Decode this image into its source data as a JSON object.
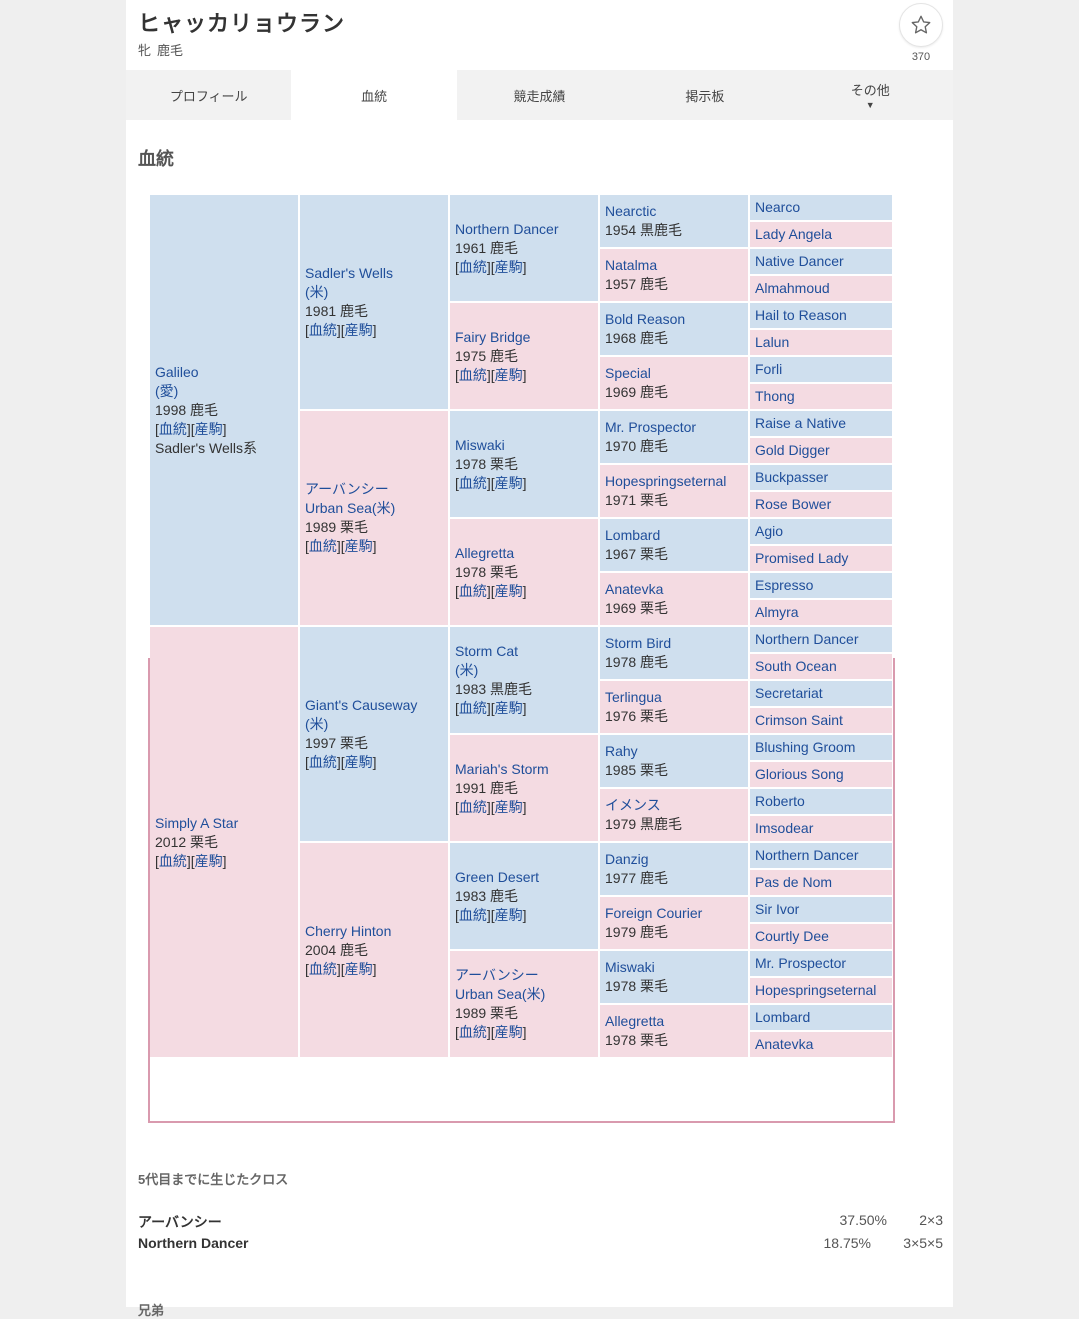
{
  "horse": {
    "name": "ヒャッカリョウラン",
    "sex": "牝",
    "color": "鹿毛",
    "favorite_count": "370",
    "favorite_icon": "star-outline-icon"
  },
  "tabs": [
    {
      "label": "プロフィール",
      "active": false
    },
    {
      "label": "血統",
      "active": true
    },
    {
      "label": "競走成績",
      "active": false
    },
    {
      "label": "掲示板",
      "active": false
    },
    {
      "label": "その他",
      "active": false,
      "caret": "▼"
    }
  ],
  "section_title": "血統",
  "links": {
    "pedigree": "血統",
    "offspring": "産駒"
  },
  "pedigree": {
    "g1": [
      {
        "name": "Galileo",
        "origin": "(愛)",
        "year_color": "1998 鹿毛",
        "links": true,
        "line": "Sadler's Wells系",
        "sex": "m"
      },
      {
        "name": "Simply A Star",
        "year_color": "2012 栗毛",
        "links": true,
        "sex": "f"
      }
    ],
    "g2": [
      {
        "name": "Sadler's Wells",
        "origin": "(米)",
        "year_color": "1981 鹿毛",
        "links": true,
        "sex": "m"
      },
      {
        "name_jp": "アーバンシー",
        "name": "Urban Sea(米)",
        "year_color": "1989 栗毛",
        "links": true,
        "sex": "f"
      },
      {
        "name": "Giant's Causeway",
        "origin": "(米)",
        "year_color": "1997 栗毛",
        "links": true,
        "sex": "m"
      },
      {
        "name": "Cherry Hinton",
        "year_color": "2004 鹿毛",
        "links": true,
        "sex": "f"
      }
    ],
    "g3": [
      {
        "name": "Northern Dancer",
        "year_color": "1961 鹿毛",
        "links": true,
        "sex": "m"
      },
      {
        "name": "Fairy Bridge",
        "year_color": "1975 鹿毛",
        "links": true,
        "sex": "f"
      },
      {
        "name": "Miswaki",
        "year_color": "1978 栗毛",
        "links": true,
        "sex": "m"
      },
      {
        "name": "Allegretta",
        "year_color": "1978 栗毛",
        "links": true,
        "sex": "f"
      },
      {
        "name": "Storm Cat",
        "origin": "(米)",
        "year_color": "1983 黒鹿毛",
        "links": true,
        "sex": "m"
      },
      {
        "name": "Mariah's Storm",
        "year_color": "1991 鹿毛",
        "links": true,
        "sex": "f"
      },
      {
        "name": "Green Desert",
        "year_color": "1983 鹿毛",
        "links": true,
        "sex": "m"
      },
      {
        "name_jp": "アーバンシー",
        "name": "Urban Sea(米)",
        "year_color": "1989 栗毛",
        "links": true,
        "sex": "f"
      }
    ],
    "g4": [
      {
        "name": "Nearctic",
        "year_color": "1954 黒鹿毛",
        "sex": "m"
      },
      {
        "name": "Natalma",
        "year_color": "1957 鹿毛",
        "sex": "f"
      },
      {
        "name": "Bold Reason",
        "year_color": "1968 鹿毛",
        "sex": "m"
      },
      {
        "name": "Special",
        "year_color": "1969 鹿毛",
        "sex": "f"
      },
      {
        "name": "Mr. Prospector",
        "year_color": "1970 鹿毛",
        "sex": "m"
      },
      {
        "name": "Hopespringseternal",
        "year_color": "1971 栗毛",
        "sex": "f"
      },
      {
        "name": "Lombard",
        "year_color": "1967 栗毛",
        "sex": "m"
      },
      {
        "name": "Anatevka",
        "year_color": "1969 栗毛",
        "sex": "f"
      },
      {
        "name": "Storm Bird",
        "year_color": "1978 鹿毛",
        "sex": "m"
      },
      {
        "name": "Terlingua",
        "year_color": "1976 栗毛",
        "sex": "f"
      },
      {
        "name": "Rahy",
        "year_color": "1985 栗毛",
        "sex": "m"
      },
      {
        "name": "イメンス",
        "year_color": "1979 黒鹿毛",
        "sex": "f"
      },
      {
        "name": "Danzig",
        "year_color": "1977 鹿毛",
        "sex": "m"
      },
      {
        "name": "Foreign Courier",
        "year_color": "1979 鹿毛",
        "sex": "f"
      },
      {
        "name": "Miswaki",
        "year_color": "1978 栗毛",
        "sex": "m"
      },
      {
        "name": "Allegretta",
        "year_color": "1978 栗毛",
        "sex": "f"
      }
    ],
    "g5": [
      "Nearco",
      "Lady Angela",
      "Native Dancer",
      "Almahmoud",
      "Hail to Reason",
      "Lalun",
      "Forli",
      "Thong",
      "Raise a Native",
      "Gold Digger",
      "Buckpasser",
      "Rose Bower",
      "Agio",
      "Promised Lady",
      "Espresso",
      "Almyra",
      "Northern Dancer",
      "South Ocean",
      "Secretariat",
      "Crimson Saint",
      "Blushing Groom",
      "Glorious Song",
      "Roberto",
      "Imsodear",
      "Northern Dancer",
      "Pas de Nom",
      "Sir Ivor",
      "Courtly Dee",
      "Mr. Prospector",
      "Hopespringseternal",
      "Lombard",
      "Anatevka"
    ]
  },
  "crosses": {
    "title": "5代目までに生じたクロス",
    "rows": [
      {
        "name": "アーバンシー",
        "percent": "37.50%",
        "pattern": "2×3"
      },
      {
        "name": "Northern Dancer",
        "percent": "18.75%",
        "pattern": "3×5×5"
      }
    ]
  },
  "next_section_partial": "兄弟"
}
